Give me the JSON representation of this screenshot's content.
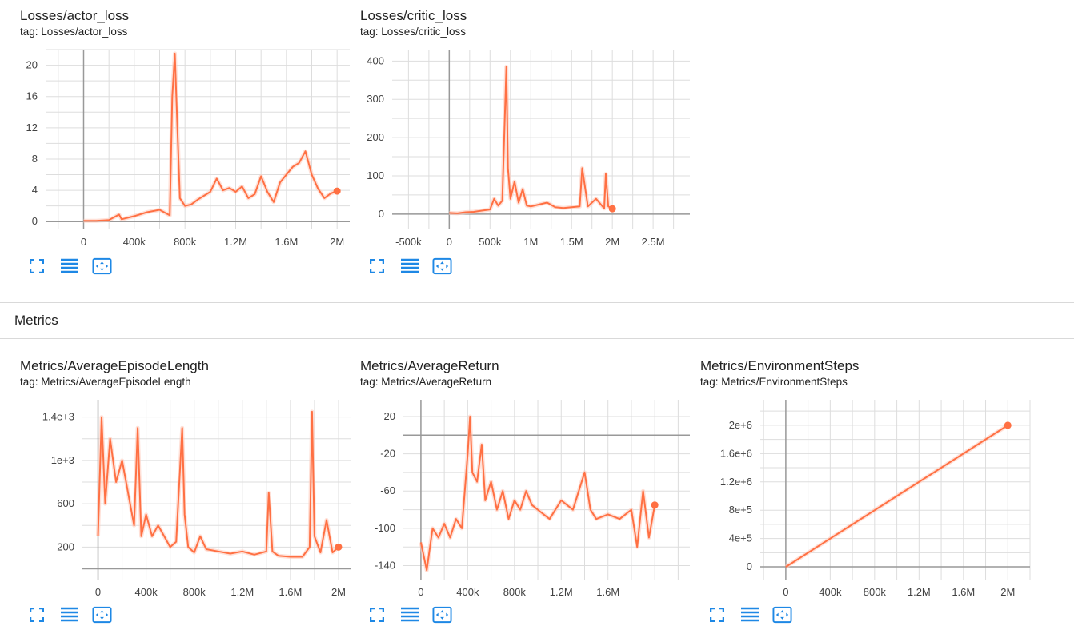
{
  "colors": {
    "line": "#ff7043",
    "line_raw": "#ffccbc",
    "grid": "#dddddd",
    "axis": "#999999",
    "icon": "#1e88e5"
  },
  "sections": {
    "metrics_title": "Metrics"
  },
  "toolbar": {
    "icons": [
      "fullscreen-icon",
      "list-icon",
      "fit-domain-icon"
    ]
  },
  "cards": [
    {
      "title": "Losses/actor_loss",
      "tag": "tag: Losses/actor_loss",
      "chart_data": {
        "type": "line",
        "xlim": [
          -300000,
          2100000
        ],
        "ylim": [
          -1,
          22
        ],
        "x_ticks": [
          0,
          400000,
          800000,
          1200000,
          1600000,
          2000000
        ],
        "x_tick_labels": [
          "0",
          "400k",
          "800k",
          "1.2M",
          "1.6M",
          "2M"
        ],
        "y_ticks": [
          0,
          4,
          8,
          12,
          16,
          20
        ],
        "y_tick_labels": [
          "0",
          "4",
          "8",
          "12",
          "16",
          "20"
        ],
        "series": [
          {
            "x": [
              0,
              100000,
              200000,
              280000,
              300000,
              400000,
              500000,
              600000,
              680000,
              700000,
              720000,
              740000,
              760000,
              800000,
              850000,
              900000,
              1000000,
              1050000,
              1100000,
              1150000,
              1200000,
              1250000,
              1300000,
              1350000,
              1400000,
              1450000,
              1500000,
              1550000,
              1600000,
              1650000,
              1700000,
              1750000,
              1800000,
              1850000,
              1900000,
              1950000,
              2000000
            ],
            "y": [
              0.1,
              0.1,
              0.2,
              0.9,
              0.3,
              0.7,
              1.2,
              1.5,
              0.8,
              16,
              21.5,
              12,
              3,
              2,
              2.2,
              2.8,
              3.8,
              5.5,
              4,
              4.3,
              3.8,
              4.5,
              3,
              3.5,
              5.8,
              3.8,
              2.5,
              5,
              6,
              7,
              7.5,
              9,
              6,
              4.2,
              3,
              3.6,
              3.9
            ]
          }
        ]
      }
    },
    {
      "title": "Losses/critic_loss",
      "tag": "tag: Losses/critic_loss",
      "chart_data": {
        "type": "line",
        "xlim": [
          -700000,
          2950000
        ],
        "ylim": [
          -40,
          430
        ],
        "x_ticks": [
          -500000,
          0,
          500000,
          1000000,
          1500000,
          2000000,
          2500000
        ],
        "x_tick_labels": [
          "-500k",
          "0",
          "500k",
          "1M",
          "1.5M",
          "2M",
          "2.5M"
        ],
        "y_ticks": [
          0,
          100,
          200,
          300,
          400
        ],
        "y_tick_labels": [
          "0",
          "100",
          "200",
          "300",
          "400"
        ],
        "series": [
          {
            "x": [
              0,
              100000,
              200000,
              300000,
              400000,
              500000,
              550000,
              600000,
              650000,
              700000,
              720000,
              750000,
              800000,
              850000,
              900000,
              950000,
              1000000,
              1100000,
              1200000,
              1300000,
              1400000,
              1500000,
              1600000,
              1630000,
              1700000,
              1800000,
              1900000,
              1920000,
              1950000,
              2000000
            ],
            "y": [
              3,
              2,
              5,
              6,
              9,
              12,
              40,
              22,
              35,
              385,
              120,
              40,
              85,
              30,
              65,
              22,
              20,
              25,
              30,
              18,
              16,
              18,
              20,
              120,
              20,
              40,
              15,
              105,
              20,
              14
            ]
          }
        ]
      }
    },
    {
      "title": "Metrics/AverageEpisodeLength",
      "tag": "tag: Metrics/AverageEpisodeLength",
      "chart_data": {
        "type": "line",
        "xlim": [
          -130000,
          2100000
        ],
        "ylim": [
          -100,
          1560
        ],
        "x_ticks": [
          0,
          400000,
          800000,
          1200000,
          1600000,
          2000000
        ],
        "x_tick_labels": [
          "0",
          "400k",
          "800k",
          "1.2M",
          "1.6M",
          "2M"
        ],
        "y_ticks": [
          200,
          600,
          1000,
          1400
        ],
        "y_tick_labels": [
          "200",
          "600",
          "1e+3",
          "1.4e+3"
        ],
        "series": [
          {
            "x": [
              0,
              30000,
              60000,
              100000,
              150000,
              200000,
              250000,
              300000,
              330000,
              360000,
              400000,
              450000,
              500000,
              550000,
              600000,
              650000,
              700000,
              720000,
              750000,
              800000,
              850000,
              900000,
              1000000,
              1100000,
              1200000,
              1300000,
              1400000,
              1420000,
              1450000,
              1500000,
              1600000,
              1700000,
              1760000,
              1780000,
              1800000,
              1850000,
              1900000,
              1950000,
              2000000
            ],
            "y": [
              300,
              1400,
              600,
              1200,
              800,
              1000,
              700,
              400,
              1300,
              300,
              500,
              300,
              400,
              300,
              200,
              250,
              1300,
              500,
              200,
              150,
              300,
              180,
              160,
              140,
              160,
              130,
              160,
              700,
              160,
              120,
              110,
              110,
              200,
              1450,
              300,
              150,
              450,
              150,
              200
            ]
          }
        ]
      }
    },
    {
      "title": "Metrics/AverageReturn",
      "tag": "tag: Metrics/AverageReturn",
      "chart_data": {
        "type": "line",
        "xlim": [
          -150000,
          2300000
        ],
        "ylim": [
          -155,
          38
        ],
        "x_ticks": [
          0,
          400000,
          800000,
          1200000,
          1600000
        ],
        "x_tick_labels": [
          "0",
          "400k",
          "800k",
          "1.2M",
          "1.6M"
        ],
        "y_ticks": [
          -140,
          -100,
          -60,
          -20,
          20
        ],
        "y_tick_labels": [
          "-140",
          "-100",
          "-60",
          "-20",
          "20"
        ],
        "series": [
          {
            "x": [
              0,
              50000,
              100000,
              150000,
              200000,
              250000,
              300000,
              350000,
              400000,
              420000,
              440000,
              480000,
              520000,
              550000,
              600000,
              650000,
              700000,
              750000,
              800000,
              850000,
              900000,
              950000,
              1000000,
              1100000,
              1200000,
              1300000,
              1400000,
              1450000,
              1500000,
              1600000,
              1700000,
              1750000,
              1800000,
              1850000,
              1900000,
              1950000,
              2000000
            ],
            "y": [
              -115,
              -145,
              -100,
              -110,
              -95,
              -110,
              -90,
              -100,
              -20,
              20,
              -40,
              -50,
              -10,
              -70,
              -50,
              -80,
              -60,
              -90,
              -70,
              -80,
              -60,
              -75,
              -80,
              -90,
              -70,
              -80,
              -40,
              -80,
              -90,
              -85,
              -90,
              -85,
              -80,
              -120,
              -60,
              -110,
              -75
            ]
          }
        ]
      }
    },
    {
      "title": "Metrics/EnvironmentSteps",
      "tag": "tag: Metrics/EnvironmentSteps",
      "chart_data": {
        "type": "line",
        "xlim": [
          -230000,
          2200000
        ],
        "ylim": [
          -180000,
          2360000
        ],
        "x_ticks": [
          0,
          400000,
          800000,
          1200000,
          1600000,
          2000000
        ],
        "x_tick_labels": [
          "0",
          "400k",
          "800k",
          "1.2M",
          "1.6M",
          "2M"
        ],
        "y_ticks": [
          0,
          400000,
          800000,
          1200000,
          1600000,
          2000000
        ],
        "y_tick_labels": [
          "0",
          "4e+5",
          "8e+5",
          "1.2e+6",
          "1.6e+6",
          "2e+6"
        ],
        "series": [
          {
            "x": [
              0,
              2000000
            ],
            "y": [
              0,
              2000000
            ]
          }
        ]
      }
    }
  ]
}
